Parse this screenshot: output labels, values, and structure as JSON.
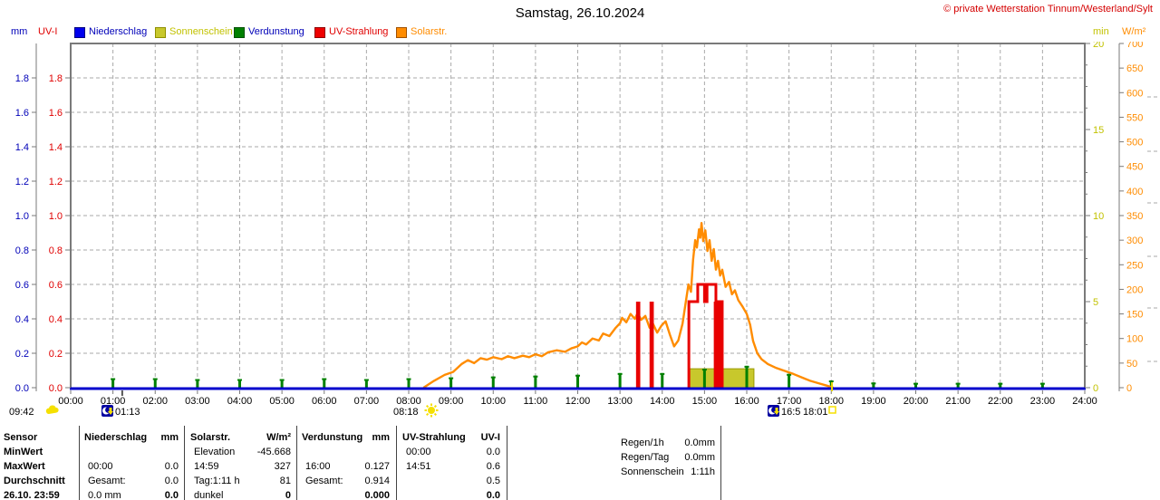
{
  "header": {
    "title": "Samstag, 26.10.2024",
    "copyright": "© private Wetterstation Tinnum/Westerland/Sylt"
  },
  "legend": {
    "left_units": [
      {
        "label": "mm",
        "color": "#0000b8"
      },
      {
        "label": "UV-I",
        "color": "#e00000"
      }
    ],
    "items": [
      {
        "label": "Niederschlag",
        "swatch": "#0000ee",
        "border": "#000080",
        "text_color": "#0000b8"
      },
      {
        "label": "Sonnenschein",
        "swatch": "#c8c82c",
        "border": "#8f8f00",
        "text_color": "#c2c200"
      },
      {
        "label": "Verdunstung",
        "swatch": "#008000",
        "border": "#005000",
        "text_color": "#0000b8"
      },
      {
        "label": "UV-Strahlung",
        "swatch": "#ee0000",
        "border": "#900000",
        "text_color": "#e00000"
      },
      {
        "label": "Solarstr.",
        "swatch": "#ff8c00",
        "border": "#a05000",
        "text_color": "#ff8c00"
      }
    ],
    "right_units": [
      {
        "label": "min",
        "color": "#c2c200"
      },
      {
        "label": "W/m²",
        "color": "#ff8c00"
      }
    ]
  },
  "chart_data": {
    "type": "line",
    "title": "Samstag, 26.10.2024",
    "grid": true,
    "x_axis": {
      "range_hours": [
        0,
        24
      ],
      "labels": [
        "00:00",
        "01:00",
        "02:00",
        "03:00",
        "04:00",
        "05:00",
        "06:00",
        "07:00",
        "08:00",
        "09:00",
        "10:00",
        "11:00",
        "12:00",
        "13:00",
        "14:00",
        "15:00",
        "16:00",
        "17:00",
        "18:00",
        "19:00",
        "20:00",
        "21:00",
        "22:00",
        "23:00",
        "24:00"
      ]
    },
    "y_axes": {
      "mm": {
        "unit": "mm",
        "color": "#0000b8",
        "range": [
          0,
          2
        ],
        "ticks": [
          "0.0",
          "0.2",
          "0.4",
          "0.6",
          "0.8",
          "1.0",
          "1.2",
          "1.4",
          "1.6",
          "1.8"
        ]
      },
      "uv": {
        "unit": "UV-I",
        "color": "#e00000",
        "range": [
          0,
          2
        ],
        "ticks": [
          "0.0",
          "0.2",
          "0.4",
          "0.6",
          "0.8",
          "1.0",
          "1.2",
          "1.4",
          "1.6",
          "1.8"
        ]
      },
      "min": {
        "unit": "min",
        "color": "#c2c200",
        "range": [
          0,
          20
        ],
        "ticks": [
          "0",
          "5",
          "10",
          "15",
          "20"
        ]
      },
      "wm2": {
        "unit": "W/m²",
        "color": "#ff8c00",
        "range": [
          0,
          700
        ],
        "ticks": [
          "0",
          "50",
          "100",
          "150",
          "200",
          "250",
          "300",
          "350",
          "400",
          "450",
          "500",
          "550",
          "600",
          "650",
          "700"
        ]
      }
    },
    "series": [
      {
        "name": "Niederschlag",
        "unit": "mm",
        "color": "#0000cc",
        "type": "line",
        "constant_value": 0.0
      },
      {
        "name": "Sonnenschein",
        "unit": "min",
        "color": "#c8c82c",
        "type": "band",
        "start_hour": 14.64,
        "end_hour": 16.17,
        "height_min": 1.1,
        "day_total": "1:11h"
      },
      {
        "name": "Verdunstung",
        "unit": "mm",
        "color": "#008000",
        "type": "bars",
        "hourly": [
          [
            1,
            0.055
          ],
          [
            2,
            0.055
          ],
          [
            3,
            0.05
          ],
          [
            4,
            0.05
          ],
          [
            5,
            0.05
          ],
          [
            6,
            0.055
          ],
          [
            7,
            0.05
          ],
          [
            8,
            0.055
          ],
          [
            9,
            0.06
          ],
          [
            10,
            0.065
          ],
          [
            11,
            0.07
          ],
          [
            12,
            0.075
          ],
          [
            13,
            0.085
          ],
          [
            14,
            0.085
          ],
          [
            15,
            0.11
          ],
          [
            16,
            0.127
          ],
          [
            17,
            0.08
          ],
          [
            18,
            0.042
          ],
          [
            19,
            0.03
          ],
          [
            20,
            0.028
          ],
          [
            21,
            0.028
          ],
          [
            22,
            0.028
          ],
          [
            23,
            0.028
          ]
        ]
      },
      {
        "name": "UV-Strahlung",
        "unit": "UV-I",
        "color": "#e80000",
        "type": "step",
        "spikes": [
          [
            13.38,
            13.48,
            0.5
          ],
          [
            13.7,
            13.8,
            0.5
          ],
          [
            15.22,
            15.42,
            0.5
          ]
        ],
        "profile": [
          [
            14.63,
            0
          ],
          [
            14.63,
            0.5
          ],
          [
            14.84,
            0.5
          ],
          [
            14.84,
            0.6
          ],
          [
            15.0,
            0.6
          ],
          [
            15.0,
            0.5
          ],
          [
            15.06,
            0.5
          ],
          [
            15.06,
            0.6
          ],
          [
            15.27,
            0.6
          ],
          [
            15.27,
            0.5
          ],
          [
            15.42,
            0.5
          ],
          [
            15.42,
            0
          ]
        ],
        "max_value": 0.6,
        "max_time": "14:51"
      },
      {
        "name": "Solarstr.",
        "unit": "W/m²",
        "color": "#ff8c00",
        "type": "line",
        "points": [
          [
            8.35,
            0
          ],
          [
            8.6,
            14
          ],
          [
            8.85,
            26
          ],
          [
            9.05,
            32
          ],
          [
            9.25,
            48
          ],
          [
            9.4,
            56
          ],
          [
            9.55,
            50
          ],
          [
            9.7,
            60
          ],
          [
            9.85,
            57
          ],
          [
            10.0,
            62
          ],
          [
            10.2,
            58
          ],
          [
            10.35,
            64
          ],
          [
            10.5,
            60
          ],
          [
            10.7,
            65
          ],
          [
            10.85,
            62
          ],
          [
            11.0,
            68
          ],
          [
            11.15,
            64
          ],
          [
            11.3,
            72
          ],
          [
            11.5,
            76
          ],
          [
            11.7,
            73
          ],
          [
            11.85,
            80
          ],
          [
            12.0,
            84
          ],
          [
            12.1,
            92
          ],
          [
            12.2,
            88
          ],
          [
            12.35,
            100
          ],
          [
            12.5,
            96
          ],
          [
            12.6,
            110
          ],
          [
            12.75,
            105
          ],
          [
            12.9,
            122
          ],
          [
            13.0,
            131
          ],
          [
            13.05,
            142
          ],
          [
            13.15,
            133
          ],
          [
            13.25,
            150
          ],
          [
            13.35,
            140
          ],
          [
            13.42,
            152
          ],
          [
            13.5,
            138
          ],
          [
            13.6,
            146
          ],
          [
            13.7,
            122
          ],
          [
            13.78,
            130
          ],
          [
            13.88,
            112
          ],
          [
            13.98,
            126
          ],
          [
            14.08,
            135
          ],
          [
            14.18,
            108
          ],
          [
            14.28,
            84
          ],
          [
            14.38,
            96
          ],
          [
            14.48,
            130
          ],
          [
            14.55,
            170
          ],
          [
            14.62,
            210
          ],
          [
            14.68,
            195
          ],
          [
            14.73,
            260
          ],
          [
            14.78,
            300
          ],
          [
            14.82,
            285
          ],
          [
            14.87,
            322
          ],
          [
            14.9,
            305
          ],
          [
            14.93,
            335
          ],
          [
            14.97,
            298
          ],
          [
            15.02,
            320
          ],
          [
            15.07,
            278
          ],
          [
            15.12,
            300
          ],
          [
            15.17,
            258
          ],
          [
            15.22,
            282
          ],
          [
            15.27,
            240
          ],
          [
            15.32,
            258
          ],
          [
            15.37,
            228
          ],
          [
            15.42,
            240
          ],
          [
            15.5,
            205
          ],
          [
            15.58,
            215
          ],
          [
            15.65,
            190
          ],
          [
            15.72,
            198
          ],
          [
            15.8,
            178
          ],
          [
            15.9,
            165
          ],
          [
            16.0,
            150
          ],
          [
            16.08,
            128
          ],
          [
            16.15,
            95
          ],
          [
            16.25,
            70
          ],
          [
            16.35,
            58
          ],
          [
            16.5,
            48
          ],
          [
            16.7,
            40
          ],
          [
            16.9,
            34
          ],
          [
            17.1,
            28
          ],
          [
            17.3,
            21
          ],
          [
            17.5,
            14
          ],
          [
            17.7,
            9
          ],
          [
            17.9,
            4
          ],
          [
            18.05,
            0
          ]
        ],
        "max_value": 327,
        "max_time": "14:59"
      }
    ],
    "sun_moon_markers": [
      {
        "time": "09:42",
        "icon": "sun-cloud-icon"
      },
      {
        "time": "01:13",
        "icon": "moon-icon"
      },
      {
        "time": "08:18",
        "icon": "sun-icon"
      },
      {
        "time": "16:5",
        "icon": "moon-icon"
      },
      {
        "time": "18:01",
        "icon": "sun-set-square-icon"
      }
    ]
  },
  "table": {
    "row_labels": [
      "Sensor",
      "MinWert",
      "MaxWert",
      "Durchschnitt",
      "26.10. 23:59"
    ],
    "columns": [
      {
        "name": "Niederschlag",
        "unit": "mm",
        "rows": [
          [
            "",
            ""
          ],
          [
            "00:00",
            "0.0"
          ],
          [
            "Gesamt:",
            "0.0"
          ],
          [
            "0.0 mm",
            "0.0"
          ]
        ]
      },
      {
        "name": "Solarstr.",
        "unit": "W/m²",
        "rows": [
          [
            "Elevation",
            "-45.668"
          ],
          [
            "14:59",
            "327"
          ],
          [
            "Tag:1:11 h",
            "81"
          ],
          [
            "dunkel",
            "0"
          ]
        ]
      },
      {
        "name": "Verdunstung",
        "unit": "mm",
        "rows": [
          [
            "",
            ""
          ],
          [
            "16:00",
            "0.127"
          ],
          [
            "Gesamt:",
            "0.914"
          ],
          [
            "",
            "0.000"
          ]
        ]
      },
      {
        "name": "UV-Strahlung",
        "unit": "UV-I",
        "rows": [
          [
            "00:00",
            "0.0"
          ],
          [
            "14:51",
            "0.6"
          ],
          [
            "",
            "0.5"
          ],
          [
            "",
            "0.0"
          ]
        ]
      }
    ],
    "extra": [
      [
        "Regen/1h",
        "0.0mm"
      ],
      [
        "Regen/Tag",
        "0.0mm"
      ],
      [
        "Sonnenschein",
        "1:11h"
      ]
    ]
  }
}
